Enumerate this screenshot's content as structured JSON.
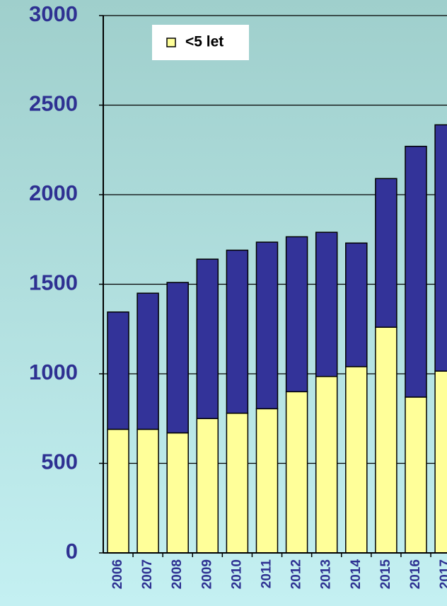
{
  "chart_data": {
    "type": "bar",
    "stacked": true,
    "categories": [
      "2006",
      "2007",
      "2008",
      "2009",
      "2010",
      "2011",
      "2012",
      "2013",
      "2014",
      "2015",
      "2016",
      "2017"
    ],
    "series": [
      {
        "name": "<5 let",
        "color": "#ffff99",
        "values": [
          690,
          690,
          670,
          750,
          780,
          805,
          900,
          985,
          1040,
          1260,
          870,
          1015
        ]
      },
      {
        "color": "#333399",
        "values": [
          655,
          760,
          840,
          890,
          910,
          930,
          865,
          805,
          690,
          830,
          1400,
          1375
        ]
      }
    ],
    "ylim": [
      0,
      3000
    ],
    "yticks": [
      0,
      500,
      1000,
      1500,
      2000,
      2500,
      3000
    ],
    "grid": true,
    "legend": "top-left"
  }
}
